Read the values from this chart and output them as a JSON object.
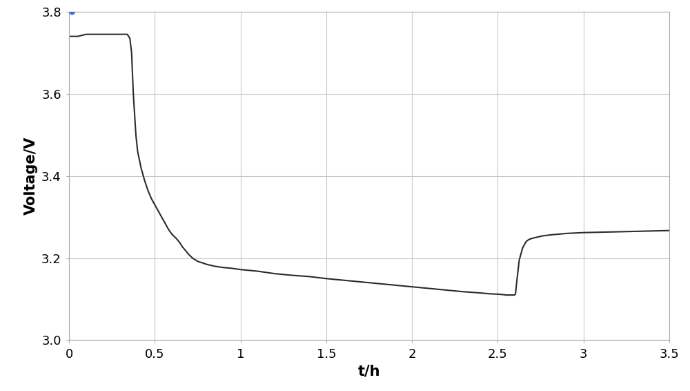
{
  "title": "",
  "xlabel": "t/h",
  "ylabel": "Voltage/V",
  "xlim": [
    0,
    3.5
  ],
  "ylim": [
    3.0,
    3.8
  ],
  "xticks": [
    0,
    0.5,
    1,
    1.5,
    2,
    2.5,
    3,
    3.5
  ],
  "yticks": [
    3.0,
    3.2,
    3.4,
    3.6,
    3.8
  ],
  "line_color": "#2b2b2b",
  "line_width": 1.5,
  "grid_color": "#c8c8c8",
  "background_color": "#ffffff",
  "marker_color": "#4472C4",
  "marker_x": 0.018,
  "marker_y": 3.8,
  "marker_size": 6,
  "curve_x": [
    0.0,
    0.05,
    0.1,
    0.15,
    0.2,
    0.25,
    0.3,
    0.34,
    0.355,
    0.365,
    0.375,
    0.39,
    0.4,
    0.42,
    0.44,
    0.46,
    0.48,
    0.5,
    0.52,
    0.54,
    0.56,
    0.58,
    0.6,
    0.625,
    0.645,
    0.66,
    0.68,
    0.7,
    0.72,
    0.75,
    0.78,
    0.8,
    0.85,
    0.9,
    0.95,
    1.0,
    1.1,
    1.2,
    1.3,
    1.4,
    1.5,
    1.6,
    1.7,
    1.8,
    1.9,
    2.0,
    2.1,
    2.2,
    2.3,
    2.4,
    2.45,
    2.5,
    2.53,
    2.55,
    2.565,
    2.575,
    2.585,
    2.592,
    2.597,
    2.603,
    2.61,
    2.625,
    2.645,
    2.665,
    2.68,
    2.7,
    2.72,
    2.74,
    2.76,
    2.78,
    2.8,
    2.82,
    2.85,
    2.9,
    2.95,
    3.0,
    3.1,
    3.2,
    3.3,
    3.4,
    3.5
  ],
  "curve_y": [
    3.74,
    3.74,
    3.745,
    3.745,
    3.745,
    3.745,
    3.745,
    3.745,
    3.735,
    3.7,
    3.6,
    3.5,
    3.46,
    3.42,
    3.39,
    3.365,
    3.345,
    3.33,
    3.315,
    3.3,
    3.285,
    3.27,
    3.258,
    3.248,
    3.238,
    3.228,
    3.218,
    3.208,
    3.2,
    3.192,
    3.188,
    3.185,
    3.18,
    3.177,
    3.175,
    3.172,
    3.168,
    3.162,
    3.158,
    3.155,
    3.15,
    3.146,
    3.142,
    3.138,
    3.134,
    3.13,
    3.126,
    3.122,
    3.118,
    3.115,
    3.113,
    3.112,
    3.111,
    3.11,
    3.11,
    3.11,
    3.11,
    3.11,
    3.11,
    3.112,
    3.14,
    3.195,
    3.225,
    3.24,
    3.245,
    3.248,
    3.25,
    3.252,
    3.254,
    3.255,
    3.256,
    3.257,
    3.258,
    3.26,
    3.261,
    3.262,
    3.263,
    3.264,
    3.265,
    3.266,
    3.267
  ],
  "xlabel_fontsize": 15,
  "ylabel_fontsize": 15,
  "tick_fontsize": 13
}
